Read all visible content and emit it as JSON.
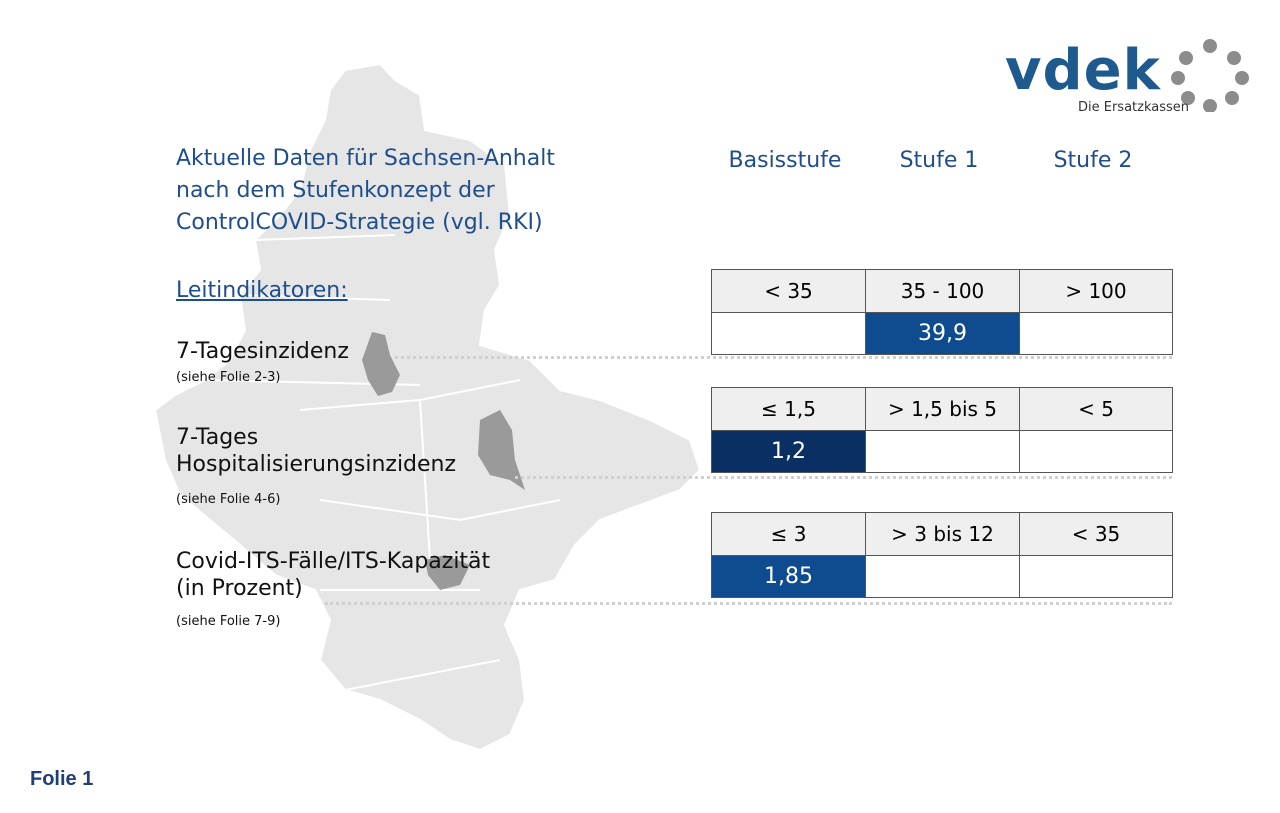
{
  "logo": {
    "wordmark": "vdek",
    "tagline": "Die Ersatzkassen"
  },
  "title": {
    "lines": [
      "Aktuelle Daten für Sachsen-Anhalt",
      "nach dem Stufenkonzept der",
      "ControlCOVID-Strategie (vgl. RKI)"
    ]
  },
  "columns": [
    "Basisstufe",
    "Stufe 1",
    "Stufe 2"
  ],
  "section_heading": "Leitindikatoren:",
  "indicators": [
    {
      "label_lines": [
        "7-Tagesinzidenz"
      ],
      "note": "(siehe Folie 2-3)",
      "thresholds": [
        "< 35",
        "35 - 100",
        "> 100"
      ],
      "values": [
        null,
        "39,9",
        null
      ]
    },
    {
      "label_lines": [
        "7-Tages",
        "Hospitalisierungsinzidenz"
      ],
      "note": "(siehe Folie 4-6)",
      "thresholds": [
        "≤ 1,5",
        "> 1,5 bis 5",
        "< 5"
      ],
      "values": [
        "1,2",
        null,
        null
      ]
    },
    {
      "label_lines": [
        "Covid-ITS-Fälle/ITS-Kapazität",
        "(in Prozent)"
      ],
      "note": "(siehe Folie 7-9)",
      "thresholds": [
        "≤ 3",
        "> 3 bis 12",
        "< 35"
      ],
      "values": [
        "1,85",
        null,
        null
      ]
    }
  ],
  "footer": "Folie 1"
}
